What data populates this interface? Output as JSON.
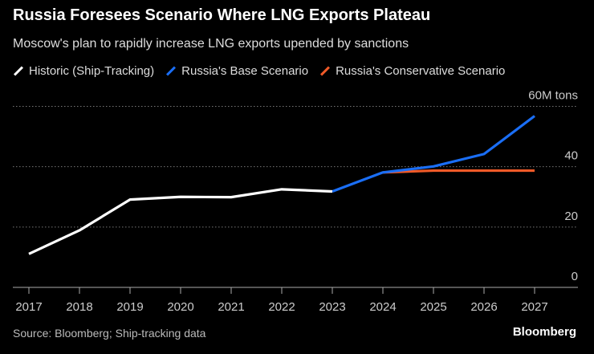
{
  "chart_data": {
    "type": "line",
    "title": "Russia Foresees Scenario Where LNG Exports Plateau",
    "subtitle": "Moscow's plan to rapidly increase LNG exports upended by sanctions",
    "x": [
      "2017",
      "2018",
      "2019",
      "2020",
      "2021",
      "2022",
      "2023",
      "2024",
      "2025",
      "2026",
      "2027"
    ],
    "ylim": [
      0,
      60
    ],
    "yticks": [
      "0",
      "20",
      "40",
      "60M tons"
    ],
    "ytick_values": [
      0,
      20,
      40,
      60
    ],
    "grid": true,
    "legend_position": "top-left",
    "series": [
      {
        "name": "Historic (Ship-Tracking)",
        "color": "#ffffff",
        "x": [
          "2017",
          "2018",
          "2019",
          "2020",
          "2021",
          "2022",
          "2023"
        ],
        "values": [
          11.1,
          18.9,
          29.1,
          30.0,
          29.9,
          32.5,
          31.8
        ]
      },
      {
        "name": "Russia's Base Scenario",
        "color": "#1a6ef5",
        "x": [
          "2023",
          "2024",
          "2025",
          "2026",
          "2027"
        ],
        "values": [
          31.8,
          38.1,
          40.1,
          44.2,
          56.8
        ]
      },
      {
        "name": "Russia's Conservative Scenario",
        "color": "#f05a28",
        "x": [
          "2024",
          "2025",
          "2026",
          "2027"
        ],
        "values": [
          38.1,
          38.7,
          38.7,
          38.7
        ]
      }
    ],
    "source": "Source: Bloomberg; Ship-tracking data",
    "brand": "Bloomberg"
  }
}
